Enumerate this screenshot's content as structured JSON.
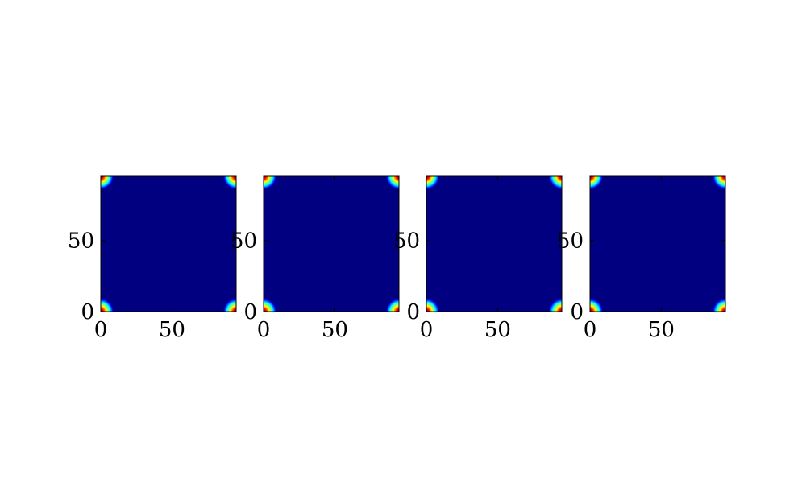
{
  "chart_data": [
    {
      "type": "heatmap",
      "title": "",
      "xlabel": "",
      "ylabel": "",
      "xlim": [
        0,
        95
      ],
      "ylim": [
        0,
        95
      ],
      "x_ticks": [
        0,
        50
      ],
      "y_ticks": [
        0,
        50
      ],
      "x_tick_labels": [
        "0",
        "50"
      ],
      "y_tick_labels": [
        "0",
        "50"
      ],
      "colormap": "jet",
      "background_value": 0,
      "peaks": [
        {
          "x": 0,
          "y": 0,
          "value": 1
        },
        {
          "x": 95,
          "y": 0,
          "value": 1
        },
        {
          "x": 0,
          "y": 95,
          "value": 1
        },
        {
          "x": 95,
          "y": 95,
          "value": 1
        }
      ],
      "grid": false
    },
    {
      "type": "heatmap",
      "title": "",
      "xlabel": "",
      "ylabel": "",
      "xlim": [
        0,
        95
      ],
      "ylim": [
        0,
        95
      ],
      "x_ticks": [
        0,
        50
      ],
      "y_ticks": [
        0,
        50
      ],
      "x_tick_labels": [
        "0",
        "50"
      ],
      "y_tick_labels": [
        "0",
        "50"
      ],
      "colormap": "jet",
      "background_value": 0,
      "peaks": [
        {
          "x": 0,
          "y": 0,
          "value": 1
        },
        {
          "x": 95,
          "y": 0,
          "value": 1
        },
        {
          "x": 0,
          "y": 95,
          "value": 1
        },
        {
          "x": 95,
          "y": 95,
          "value": 1
        }
      ],
      "grid": false
    },
    {
      "type": "heatmap",
      "title": "",
      "xlabel": "",
      "ylabel": "",
      "xlim": [
        0,
        95
      ],
      "ylim": [
        0,
        95
      ],
      "x_ticks": [
        0,
        50
      ],
      "y_ticks": [
        0,
        50
      ],
      "x_tick_labels": [
        "0",
        "50"
      ],
      "y_tick_labels": [
        "0",
        "50"
      ],
      "colormap": "jet",
      "background_value": 0,
      "peaks": [
        {
          "x": 0,
          "y": 0,
          "value": 1
        },
        {
          "x": 95,
          "y": 0,
          "value": 1
        },
        {
          "x": 0,
          "y": 95,
          "value": 1
        },
        {
          "x": 95,
          "y": 95,
          "value": 1
        }
      ],
      "grid": false
    },
    {
      "type": "heatmap",
      "title": "",
      "xlabel": "",
      "ylabel": "",
      "xlim": [
        0,
        95
      ],
      "ylim": [
        0,
        95
      ],
      "x_ticks": [
        0,
        50
      ],
      "y_ticks": [
        0,
        50
      ],
      "x_tick_labels": [
        "0",
        "50"
      ],
      "y_tick_labels": [
        "0",
        "50"
      ],
      "colormap": "jet",
      "background_value": 0,
      "peaks": [
        {
          "x": 0,
          "y": 0,
          "value": 1
        },
        {
          "x": 95,
          "y": 0,
          "value": 1
        },
        {
          "x": 0,
          "y": 95,
          "value": 1
        },
        {
          "x": 95,
          "y": 95,
          "value": 1
        }
      ],
      "grid": false
    }
  ],
  "colors": {
    "background": "#ffffff",
    "axis": "#000000",
    "jet_low": "#000080",
    "jet_stops": [
      "#000080",
      "#0000ff",
      "#00ffff",
      "#ffff00",
      "#ff0000",
      "#800000"
    ]
  }
}
